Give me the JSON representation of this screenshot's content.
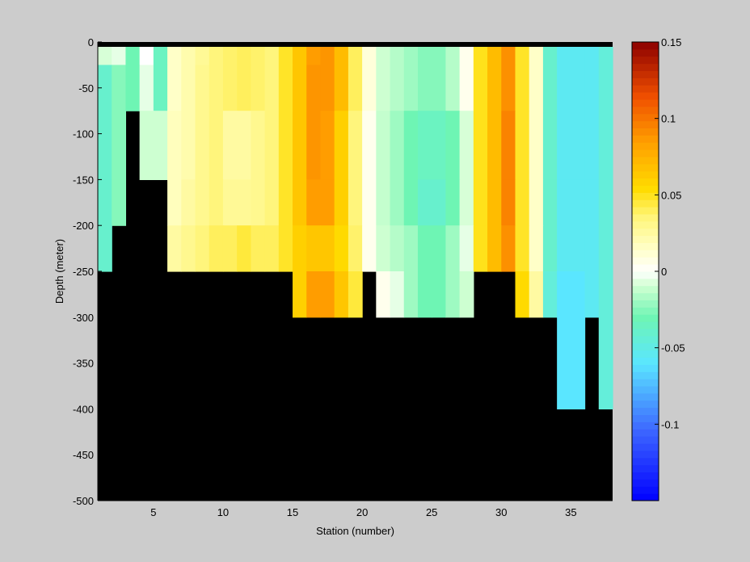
{
  "chart_data": {
    "type": "heatmap",
    "xlabel": "Station (number)",
    "ylabel": "Depth (meter)",
    "xlim": [
      1,
      38
    ],
    "ylim": [
      -500,
      0
    ],
    "x_ticks": [
      5,
      10,
      15,
      20,
      25,
      30,
      35
    ],
    "y_ticks": [
      0,
      -50,
      -100,
      -150,
      -200,
      -250,
      -300,
      -350,
      -400,
      -450,
      -500
    ],
    "colorbar": {
      "range": [
        -0.15,
        0.15
      ],
      "ticks": [
        0.15,
        0.1,
        0.05,
        0,
        -0.05,
        -0.1
      ],
      "tick_labels": [
        "0.15",
        "0.1",
        "0.05",
        "0",
        "-0.05",
        "-0.1"
      ]
    },
    "land_color": "#000000",
    "rows_depth_bottom": [
      -25,
      -75,
      -150,
      -200,
      -250,
      -300,
      -400
    ],
    "row_bottom_labels": [
      "-25",
      "-75",
      "-150",
      "-200",
      "-250",
      "-300",
      "-400"
    ],
    "stations": [
      1,
      2,
      3,
      4,
      5,
      6,
      7,
      8,
      9,
      10,
      11,
      12,
      13,
      14,
      15,
      16,
      17,
      18,
      19,
      20,
      21,
      22,
      23,
      24,
      25,
      26,
      27,
      28,
      29,
      30,
      31,
      32,
      33,
      34,
      35,
      36,
      37
    ],
    "values": [
      [
        -0.008,
        -0.005,
        -0.03,
        0.0,
        -0.035,
        0.015,
        0.022,
        0.028,
        0.035,
        0.038,
        0.04,
        0.038,
        0.035,
        0.048,
        0.065,
        0.085,
        0.088,
        0.07,
        0.04,
        0.01,
        -0.01,
        -0.015,
        -0.02,
        -0.025,
        -0.025,
        -0.015,
        0.005,
        0.05,
        0.07,
        0.09,
        0.048,
        0.015,
        -0.04,
        -0.055,
        -0.055,
        -0.055,
        -0.045
      ],
      [
        -0.04,
        -0.025,
        -0.03,
        -0.005,
        -0.035,
        0.015,
        0.022,
        0.03,
        0.035,
        0.038,
        0.04,
        0.038,
        0.035,
        0.048,
        0.065,
        0.088,
        0.088,
        0.07,
        0.04,
        0.01,
        -0.01,
        -0.015,
        -0.02,
        -0.025,
        -0.025,
        -0.015,
        0.005,
        0.05,
        0.07,
        0.09,
        0.048,
        0.015,
        -0.04,
        -0.055,
        -0.055,
        -0.055,
        -0.045
      ],
      [
        -0.04,
        -0.025,
        null,
        -0.01,
        -0.01,
        0.018,
        0.022,
        0.03,
        0.035,
        0.025,
        0.025,
        0.03,
        0.035,
        0.048,
        0.065,
        0.088,
        0.085,
        0.06,
        0.035,
        0.005,
        -0.012,
        -0.02,
        -0.03,
        -0.035,
        -0.035,
        -0.03,
        -0.008,
        0.05,
        0.07,
        0.095,
        0.048,
        0.015,
        -0.04,
        -0.055,
        -0.055,
        -0.055,
        -0.045
      ],
      [
        -0.04,
        -0.025,
        null,
        null,
        null,
        0.018,
        0.025,
        0.03,
        0.035,
        0.028,
        0.028,
        0.03,
        0.035,
        0.048,
        0.065,
        0.085,
        0.085,
        0.06,
        0.035,
        0.005,
        -0.012,
        -0.02,
        -0.03,
        -0.04,
        -0.04,
        -0.03,
        -0.008,
        0.05,
        0.07,
        0.095,
        0.048,
        0.015,
        -0.04,
        -0.055,
        -0.055,
        -0.055,
        -0.045
      ],
      [
        -0.04,
        null,
        null,
        null,
        null,
        0.025,
        0.03,
        0.035,
        0.04,
        0.04,
        0.045,
        0.04,
        0.04,
        0.048,
        0.06,
        0.065,
        0.065,
        0.055,
        0.038,
        0.005,
        -0.01,
        -0.015,
        -0.02,
        -0.03,
        -0.03,
        -0.02,
        -0.005,
        0.05,
        0.07,
        0.09,
        0.048,
        0.015,
        -0.04,
        -0.055,
        -0.055,
        -0.055,
        -0.045
      ],
      [
        null,
        null,
        null,
        null,
        null,
        null,
        null,
        null,
        null,
        null,
        null,
        null,
        null,
        null,
        0.06,
        0.085,
        0.085,
        0.065,
        0.045,
        null,
        0.005,
        -0.005,
        -0.02,
        -0.03,
        -0.03,
        -0.02,
        -0.01,
        null,
        null,
        null,
        0.055,
        0.025,
        -0.045,
        -0.06,
        -0.06,
        -0.055,
        -0.045
      ],
      [
        null,
        null,
        null,
        null,
        null,
        null,
        null,
        null,
        null,
        null,
        null,
        null,
        null,
        null,
        null,
        null,
        null,
        null,
        null,
        null,
        null,
        null,
        null,
        null,
        null,
        null,
        null,
        null,
        null,
        null,
        null,
        null,
        null,
        -0.06,
        -0.06,
        null,
        -0.045
      ]
    ]
  }
}
